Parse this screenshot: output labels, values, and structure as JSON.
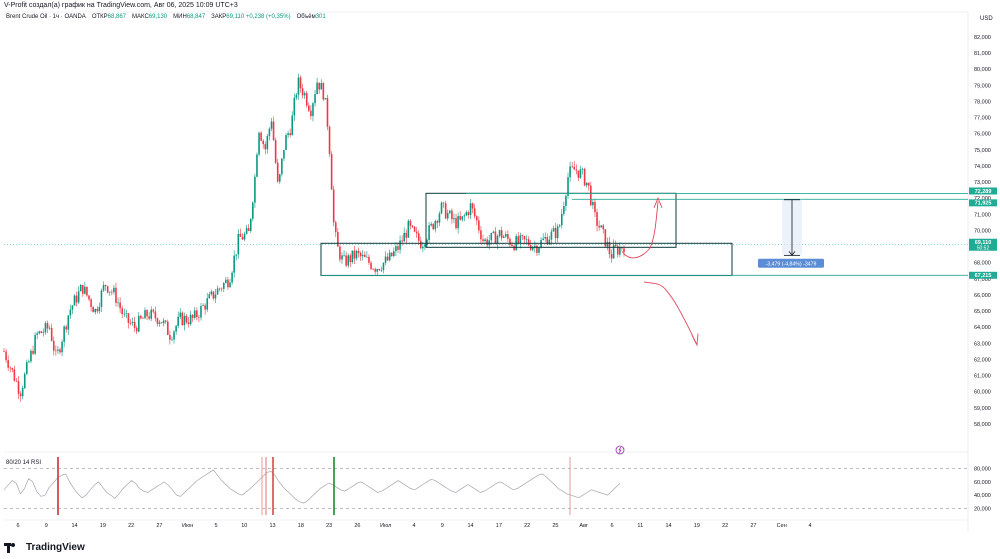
{
  "header": {
    "title": "V-Profit создал(а) график на TradingView.com, Авг 06, 2025 10:09 UTC+3"
  },
  "legend": {
    "symbol": "Brent Crude Oil · 1ч · OANDA",
    "open_label": "ОТКР",
    "open_value": "68,867",
    "high_label": "МАКС",
    "high_value": "69,130",
    "low_label": "МИН",
    "low_value": "68,847",
    "close_label": "ЗАКР",
    "close_value": "69,110 +0,238 (+0,35%)",
    "volume_label": "Объём",
    "volume_value": "301"
  },
  "currency": "USD",
  "rsi_label": "80/20 14 RSI",
  "footer": {
    "brand": "TradingView"
  },
  "colors": {
    "up": "#089981",
    "down": "#f23645",
    "box": "#0d3b3a",
    "teal_line": "#22ab94",
    "arrow_red": "#e0455a",
    "measure_blue": "#5b8dd6"
  },
  "chart_data": {
    "type": "candlestick",
    "ylim": [
      57,
      82.8
    ],
    "y_ticks": [
      "82,000",
      "81,000",
      "80,000",
      "79,000",
      "78,000",
      "77,000",
      "76,000",
      "75,000",
      "74,000",
      "73,000",
      "72,000",
      "71,000",
      "70,000",
      "69,000",
      "68,000",
      "67,000",
      "66,000",
      "65,000",
      "64,000",
      "63,000",
      "62,000",
      "61,000",
      "60,000",
      "59,000",
      "58,000"
    ],
    "x_labels": [
      "6",
      "9",
      "14",
      "19",
      "22",
      "27",
      "Июн",
      "5",
      "10",
      "13",
      "18",
      "23",
      "26",
      "Июл",
      "4",
      "9",
      "14",
      "17",
      "22",
      "25",
      "Авг",
      "6",
      "11",
      "14",
      "19",
      "22",
      "27",
      "Сен",
      "4"
    ],
    "price_path": [
      [
        0,
        62.5
      ],
      [
        5,
        60.0
      ],
      [
        10,
        63.5
      ],
      [
        14,
        64.0
      ],
      [
        16,
        62.0
      ],
      [
        20,
        65.0
      ],
      [
        24,
        66.5
      ],
      [
        28,
        65.0
      ],
      [
        31,
        66.7
      ],
      [
        34,
        66.0
      ],
      [
        37,
        64.5
      ],
      [
        40,
        64.0
      ],
      [
        44,
        64.8
      ],
      [
        48,
        64.5
      ],
      [
        51,
        63.5
      ],
      [
        54,
        64.5
      ],
      [
        58,
        64.5
      ],
      [
        62,
        65.5
      ],
      [
        65,
        66.2
      ],
      [
        69,
        67.0
      ],
      [
        72,
        69.5
      ],
      [
        75,
        69.8
      ],
      [
        77,
        73.5
      ],
      [
        78,
        76.5
      ],
      [
        80,
        75.0
      ],
      [
        82,
        77.0
      ],
      [
        84,
        72.5
      ],
      [
        86,
        75.5
      ],
      [
        88,
        76.5
      ],
      [
        90,
        79.2
      ],
      [
        92,
        78.5
      ],
      [
        94,
        77.5
      ],
      [
        96,
        79.3
      ],
      [
        98,
        78.5
      ],
      [
        99,
        77.0
      ],
      [
        100,
        74.5
      ],
      [
        101,
        70.5
      ],
      [
        102,
        69.0
      ],
      [
        104,
        68.0
      ],
      [
        108,
        68.5
      ],
      [
        112,
        68.0
      ],
      [
        114,
        67.7
      ],
      [
        118,
        68.2
      ],
      [
        121,
        69.0
      ],
      [
        124,
        70.2
      ],
      [
        126,
        69.6
      ],
      [
        128,
        69.2
      ],
      [
        131,
        70.2
      ],
      [
        134,
        71.4
      ],
      [
        136,
        71.0
      ],
      [
        138,
        70.5
      ],
      [
        140,
        70.5
      ],
      [
        143,
        71.5
      ],
      [
        145,
        70.5
      ],
      [
        147,
        69.3
      ],
      [
        150,
        69.5
      ],
      [
        152,
        69.8
      ],
      [
        154,
        69.5
      ],
      [
        156,
        69.2
      ],
      [
        160,
        69.3
      ],
      [
        163,
        69.0
      ],
      [
        166,
        69.5
      ],
      [
        170,
        70.0
      ],
      [
        173,
        73.5
      ],
      [
        175,
        73.8
      ],
      [
        177,
        73.5
      ],
      [
        179,
        72.8
      ],
      [
        181,
        70.8
      ],
      [
        183,
        70.0
      ],
      [
        185,
        69.0
      ],
      [
        186,
        68.4
      ],
      [
        187,
        68.8
      ],
      [
        188,
        68.8
      ],
      [
        190,
        69.1
      ]
    ],
    "candle_days_total": 190,
    "rsi_levels": {
      "upper": 80,
      "lower": 20
    },
    "rsi_ticks": [
      "80,000",
      "60,000",
      "40,000",
      "20,000"
    ],
    "rsi_values": [
      48,
      55,
      62,
      58,
      42,
      50,
      65,
      60,
      45,
      38,
      40,
      52,
      58,
      66,
      70,
      72,
      60,
      50,
      42,
      36,
      40,
      48,
      55,
      60,
      52,
      44,
      40,
      35,
      42,
      50,
      56,
      62,
      58,
      50,
      46,
      44,
      48,
      52,
      56,
      60,
      55,
      48,
      40,
      38,
      44,
      50,
      56,
      62,
      66,
      70,
      74,
      78,
      70,
      62,
      56,
      50,
      46,
      42,
      40,
      45,
      50,
      56,
      62,
      68,
      74,
      76,
      70,
      60,
      52,
      46,
      40,
      34,
      30,
      28,
      32,
      38,
      44,
      50,
      54,
      58,
      56,
      52,
      48,
      46,
      50,
      54,
      58,
      60,
      56,
      52,
      48,
      44,
      46,
      50,
      54,
      58,
      62,
      58,
      54,
      50,
      48,
      52,
      56,
      60,
      64,
      62,
      58,
      54,
      50,
      46,
      44,
      48,
      52,
      56,
      52,
      48,
      44,
      46,
      50,
      54,
      58,
      60,
      56,
      52,
      48,
      50,
      54,
      58,
      62,
      66,
      70,
      72,
      68,
      62,
      56,
      50,
      46,
      42,
      40,
      38,
      36,
      40,
      44,
      48,
      46,
      44,
      42,
      40,
      46,
      52,
      58
    ],
    "price_labels": [
      {
        "text": "72,289",
        "price": 72.289
      },
      {
        "text": "71,925",
        "price": 71.925
      },
      {
        "text": "69,110",
        "price": 69.11,
        "sub": "50:52"
      },
      {
        "text": "67,215",
        "price": 67.215
      }
    ],
    "measure_label": "-3,479 (-4,84%) -3479",
    "horizontal_lines": [
      72.289,
      71.925,
      67.215
    ],
    "current_price": 69.11
  }
}
